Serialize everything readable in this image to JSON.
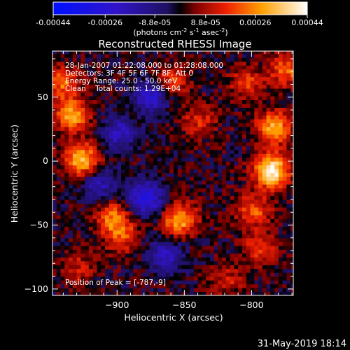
{
  "chart_data": {
    "type": "heatmap",
    "title": "Reconstructed RHESSI Image",
    "xlabel": "Heliocentric X (arcsec)",
    "ylabel": "Heliocentric Y (arcsec)",
    "xlim": [
      -948,
      -769
    ],
    "ylim": [
      -105,
      86
    ],
    "x_ticks": [
      -900,
      -850,
      -800
    ],
    "y_ticks": [
      -100,
      -50,
      0,
      50
    ],
    "grid": false,
    "annotations": [
      "28-Jan-2007 01:22:08.000 to 01:28:08.000",
      "Detectors: 3F 4F 5F 6F 7F 8F, Att 0",
      "Energy Range: 25.0 - 50.0 keV",
      "Clean    Total counts: 1.29E+04"
    ],
    "peak_label": "Position of Peak = [-787,-9]",
    "colorbar": {
      "tick_labels": [
        "-0.00044",
        "-0.00026",
        "-8.8e-05",
        "8.8e-05",
        "0.00026",
        "0.00044"
      ],
      "tick_values": [
        -0.00044,
        -0.00026,
        -8.8e-05,
        8.8e-05,
        0.00026,
        0.00044
      ],
      "range": [
        -0.00044,
        0.00044
      ],
      "unit_label": "(photons cm",
      "unit_exp1": "-2",
      "unit_mid": " s",
      "unit_exp2": "-1",
      "unit_mid2": " asec",
      "unit_exp3": "-2",
      "unit_end": ")"
    },
    "sources": [
      {
        "x": -787,
        "y": -9,
        "flux": 0.00044
      },
      {
        "x": -785,
        "y": 25,
        "flux": 0.0003
      },
      {
        "x": -800,
        "y": -40,
        "flux": 0.0002
      },
      {
        "x": -795,
        "y": -70,
        "flux": 0.00018
      },
      {
        "x": -805,
        "y": 60,
        "flux": 0.00016
      },
      {
        "x": -935,
        "y": 35,
        "flux": 0.0003
      },
      {
        "x": -928,
        "y": 0,
        "flux": 0.00034
      },
      {
        "x": -942,
        "y": 60,
        "flux": 0.00022
      },
      {
        "x": -905,
        "y": -45,
        "flux": 0.00022
      },
      {
        "x": -898,
        "y": -60,
        "flux": 0.00018
      },
      {
        "x": -855,
        "y": -47,
        "flux": 0.0003
      },
      {
        "x": -862,
        "y": 60,
        "flux": 0.0002
      },
      {
        "x": -840,
        "y": 30,
        "flux": 0.00015
      },
      {
        "x": -930,
        "y": -85,
        "flux": 0.00012
      },
      {
        "x": -775,
        "y": 70,
        "flux": 0.00022
      },
      {
        "x": -820,
        "y": -95,
        "flux": 0.00012
      },
      {
        "x": -880,
        "y": -30,
        "flux": -0.0003
      },
      {
        "x": -875,
        "y": 50,
        "flux": -0.00026
      },
      {
        "x": -900,
        "y": 20,
        "flux": -0.0002
      },
      {
        "x": -915,
        "y": -20,
        "flux": -0.00018
      },
      {
        "x": -865,
        "y": -75,
        "flux": -0.0002
      }
    ]
  },
  "footer": {
    "datetime": "31-May-2019 18:14"
  }
}
